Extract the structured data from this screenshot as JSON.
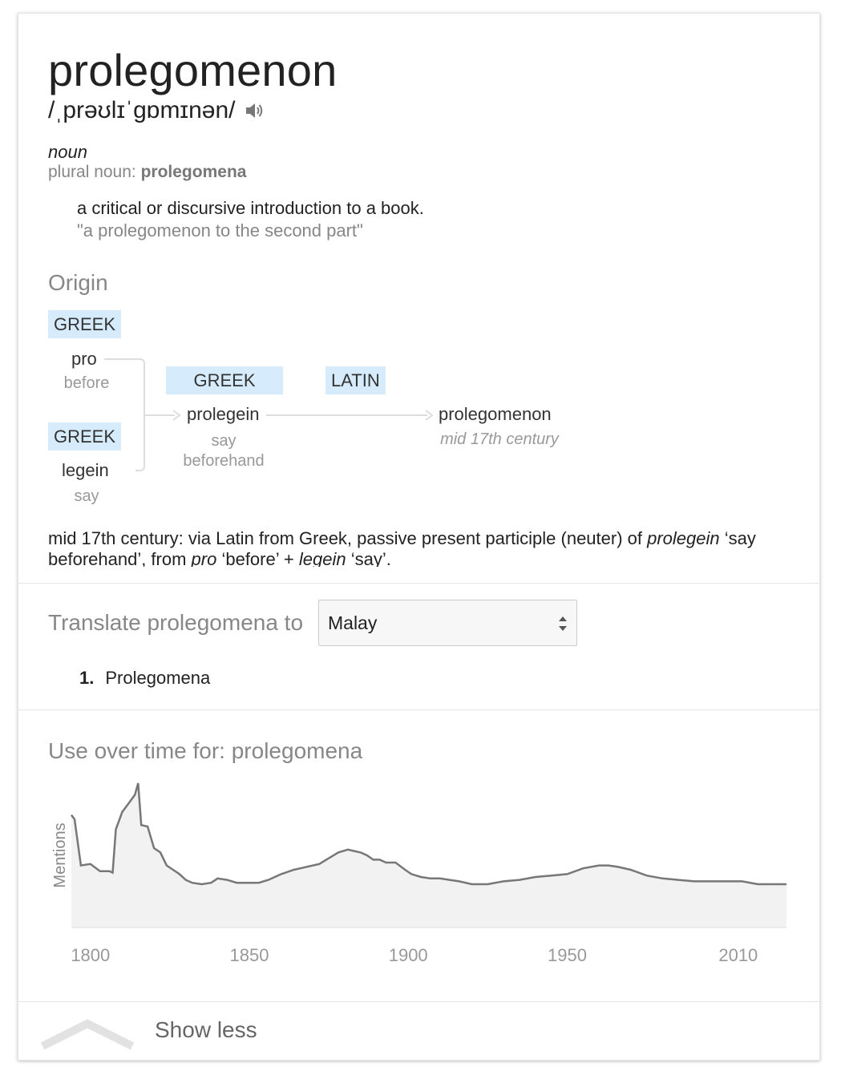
{
  "entry": {
    "word": "prolegomenon",
    "pronunciation": "/ˌprəʊlɪˈɡɒmɪnən/",
    "part_of_speech": "noun",
    "plural_label": "plural noun: ",
    "plural_value": "prolegomena",
    "definition": "a critical or discursive introduction to a book.",
    "example": "\"a prolegomenon to the second part\""
  },
  "origin": {
    "heading": "Origin",
    "nodes": {
      "greek1_tag": "GREEK",
      "pro_word": "pro",
      "pro_gloss": "before",
      "greek2_tag": "GREEK",
      "legein_word": "legein",
      "legein_gloss": "say",
      "greek3_tag": "GREEK",
      "prolegein_word": "prolegein",
      "prolegein_gloss1": "say",
      "prolegein_gloss2": "beforehand",
      "latin_tag": "LATIN",
      "final_word": "prolegomenon",
      "final_date": "mid 17th century"
    },
    "text_parts": {
      "p1": "mid 17th century: via Latin from Greek, passive present participle (neuter) of ",
      "i1": "prolegein",
      "p2": " ‘say beforehand’, from ",
      "i2": "pro",
      "p3": " ‘before’ + ",
      "i3": "legein",
      "p4": " ‘say’."
    }
  },
  "translate": {
    "label": "Translate prolegomena to",
    "selected_language": "Malay",
    "results": [
      {
        "number": "1.",
        "text": "Prolegomena"
      }
    ]
  },
  "usage": {
    "heading": "Use over time for: prolegomena"
  },
  "chart_data": {
    "type": "area",
    "ylabel": "Mentions",
    "x_ticks": [
      "1800",
      "1850",
      "1900",
      "1950",
      "2010"
    ],
    "xlim": [
      1794,
      2019
    ],
    "ylim": [
      0,
      100
    ],
    "x": [
      1794,
      1795,
      1797,
      1800,
      1803,
      1806,
      1807,
      1808,
      1810,
      1812,
      1814,
      1815,
      1816,
      1818,
      1820,
      1822,
      1824,
      1826,
      1828,
      1830,
      1832,
      1835,
      1838,
      1840,
      1843,
      1846,
      1850,
      1853,
      1856,
      1860,
      1864,
      1868,
      1872,
      1875,
      1878,
      1881,
      1883,
      1885,
      1887,
      1889,
      1891,
      1893,
      1896,
      1899,
      1901,
      1904,
      1907,
      1910,
      1913,
      1916,
      1920,
      1925,
      1930,
      1935,
      1940,
      1945,
      1950,
      1955,
      1960,
      1963,
      1966,
      1970,
      1975,
      1980,
      1985,
      1990,
      1995,
      2000,
      2005,
      2010,
      2019
    ],
    "y": [
      78,
      75,
      43,
      44,
      39,
      39,
      38,
      68,
      80,
      86,
      92,
      100,
      71,
      70,
      55,
      52,
      43,
      40,
      37,
      33,
      31,
      30,
      31,
      34,
      33,
      31,
      31,
      31,
      33,
      37,
      40,
      42,
      44,
      48,
      52,
      54,
      53,
      52,
      50,
      47,
      47,
      45,
      45,
      40,
      37,
      35,
      34,
      34,
      33,
      32,
      30,
      30,
      32,
      33,
      35,
      36,
      37,
      41,
      43,
      43,
      42,
      40,
      36,
      34,
      33,
      32,
      32,
      32,
      32,
      30,
      30
    ]
  },
  "footer": {
    "show_less": "Show less"
  }
}
